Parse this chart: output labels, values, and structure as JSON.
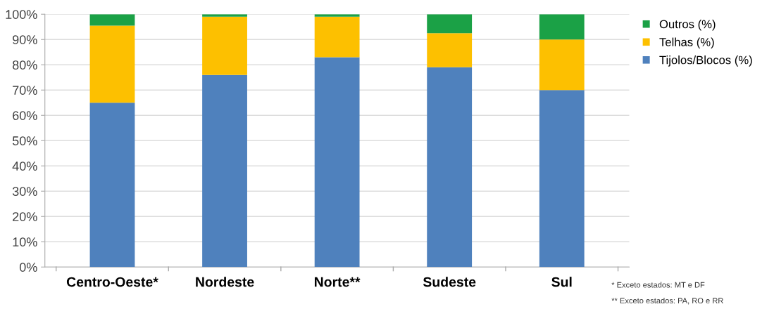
{
  "chart_data": {
    "type": "bar",
    "stacked": true,
    "categories": [
      "Centro-Oeste*",
      "Nordeste",
      "Norte**",
      "Sudeste",
      "Sul"
    ],
    "series": [
      {
        "name": "Tijolos/Blocos (%)",
        "color": "#4f81bd",
        "values": [
          65,
          76,
          83,
          79,
          70
        ]
      },
      {
        "name": "Telhas (%)",
        "color": "#fdc000",
        "values": [
          30.5,
          23,
          16,
          13.5,
          20
        ]
      },
      {
        "name": "Outros (%)",
        "color": "#1ba146",
        "values": [
          4.5,
          1,
          1,
          7.5,
          10
        ]
      }
    ],
    "ylim": [
      0,
      100
    ],
    "yticks": [
      {
        "value": 0,
        "label": "0%"
      },
      {
        "value": 10,
        "label": "10%"
      },
      {
        "value": 20,
        "label": "20%"
      },
      {
        "value": 30,
        "label": "30%"
      },
      {
        "value": 40,
        "label": "40%"
      },
      {
        "value": 50,
        "label": "50%"
      },
      {
        "value": 60,
        "label": "60%"
      },
      {
        "value": 70,
        "label": "70%"
      },
      {
        "value": 80,
        "label": "80%"
      },
      {
        "value": 90,
        "label": "90%"
      },
      {
        "value": 100,
        "label": "100%"
      }
    ],
    "grid": "y",
    "legend": "top right",
    "annotations": [
      "* Exceto estados: MT e DF",
      "** Exceto estados: PA, RO e RR"
    ]
  }
}
